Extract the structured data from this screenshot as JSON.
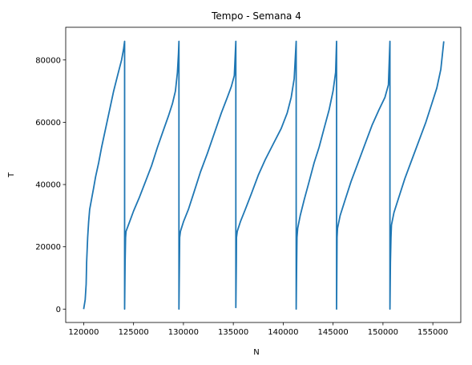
{
  "chart_data": {
    "type": "line",
    "title": "Tempo - Semana 4",
    "xlabel": "N",
    "ylabel": "T",
    "xlim": [
      118200,
      157800
    ],
    "ylim": [
      -4300,
      90500
    ],
    "xticks": [
      120000,
      125000,
      130000,
      135000,
      140000,
      145000,
      150000,
      155000
    ],
    "yticks": [
      0,
      20000,
      40000,
      60000,
      80000
    ],
    "grid": false,
    "legend": false,
    "line_color": "#1f77b4",
    "series": [
      {
        "x": [
          120000,
          120150,
          120250,
          120300,
          120400,
          120500,
          120600,
          120800,
          121000,
          121200,
          121500,
          121800,
          122200,
          122600,
          123000,
          123400,
          123800,
          124000,
          124100,
          124100,
          124150,
          124200,
          124250,
          124600,
          125000,
          125600,
          126200,
          126800,
          127400,
          128000,
          128500,
          128900,
          129200,
          129400,
          129500,
          129550,
          129550,
          129600,
          129620,
          129700,
          130000,
          130500,
          131000,
          131700,
          132400,
          133100,
          133800,
          134400,
          134800,
          135100,
          135250,
          135250,
          135300,
          135320,
          135400,
          135700,
          136200,
          136800,
          137500,
          138200,
          139000,
          139800,
          140400,
          140800,
          141100,
          141300,
          141300,
          141350,
          141380,
          141450,
          141700,
          142100,
          142600,
          143100,
          143600,
          144100,
          144600,
          145000,
          145250,
          145350,
          145350,
          145380,
          145400,
          145450,
          145700,
          146200,
          146800,
          147500,
          148200,
          148900,
          149600,
          150200,
          150550,
          150700,
          150700,
          150750,
          150800,
          150850,
          151100,
          151600,
          152200,
          152900,
          153600,
          154300,
          154900,
          155400,
          155800,
          156100
        ],
        "y": [
          0,
          3000,
          8000,
          15000,
          23000,
          28000,
          32000,
          35500,
          39000,
          42500,
          47000,
          52000,
          58000,
          64000,
          70000,
          75000,
          80000,
          83500,
          86000,
          0,
          15000,
          23000,
          25000,
          28000,
          31500,
          36000,
          41000,
          46000,
          52000,
          57500,
          62000,
          66000,
          70000,
          76000,
          82000,
          86000,
          0,
          15000,
          23000,
          25000,
          28000,
          32000,
          37000,
          44000,
          50000,
          56500,
          63000,
          68000,
          71500,
          75000,
          86000,
          500,
          15000,
          23000,
          25000,
          28000,
          32000,
          37000,
          43000,
          48000,
          53000,
          58000,
          63000,
          68000,
          74000,
          86000,
          0,
          15000,
          23000,
          26000,
          30000,
          35000,
          41000,
          47000,
          52000,
          58000,
          64000,
          70000,
          76000,
          86000,
          0,
          15000,
          23000,
          26000,
          30000,
          35000,
          41000,
          47000,
          53000,
          59000,
          64000,
          68000,
          72000,
          86000,
          0,
          15000,
          23000,
          27000,
          31000,
          36000,
          42000,
          48000,
          54000,
          60000,
          66000,
          71000,
          77000,
          86000
        ]
      }
    ]
  }
}
